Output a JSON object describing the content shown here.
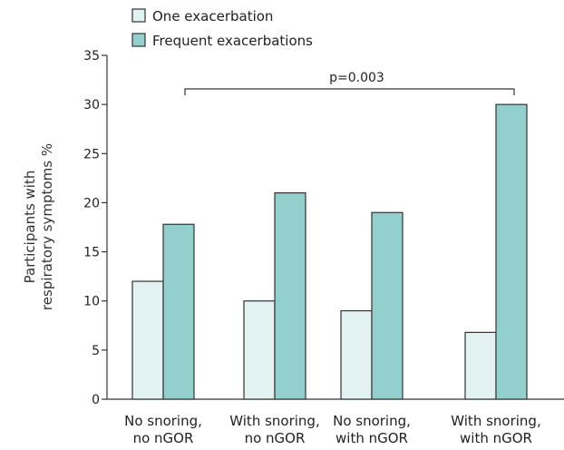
{
  "chart_data": {
    "type": "bar",
    "categories": [
      [
        "No snoring,",
        "no nGOR"
      ],
      [
        "With snoring,",
        "no nGOR"
      ],
      [
        "No snoring,",
        "with nGOR"
      ],
      [
        "With snoring,",
        "with nGOR"
      ]
    ],
    "series": [
      {
        "name": "One exacerbation",
        "values": [
          12,
          10,
          9,
          6.8
        ],
        "color": "#e2f1f1"
      },
      {
        "name": "Frequent exacerbations",
        "values": [
          17.8,
          21,
          19,
          30
        ],
        "color": "#93cfcd"
      }
    ],
    "ylabel": [
      "Participants with",
      "respiratory symptoms %"
    ],
    "ylim": [
      0,
      35
    ],
    "yticks": [
      0,
      5,
      10,
      15,
      20,
      25,
      30,
      35
    ],
    "grid": false,
    "legend_position": "top-left",
    "annotation": {
      "text": "p=0.003",
      "from_category": 0,
      "to_category": 3
    }
  }
}
